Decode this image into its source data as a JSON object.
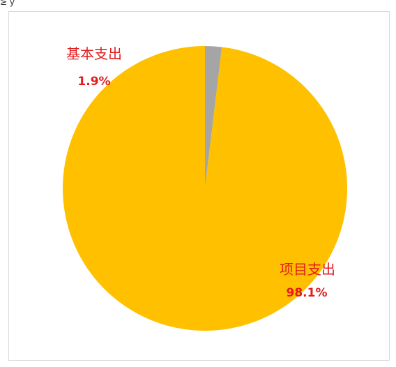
{
  "corner_text": "≥ y",
  "chart_data": {
    "type": "pie",
    "slices": [
      {
        "label": "基本支出",
        "value": 1.9,
        "display": "1.9%",
        "color": "#a5a5a5"
      },
      {
        "label": "项目支出",
        "value": 98.1,
        "display": "98.1%",
        "color": "#ffc000"
      }
    ],
    "start_angle_deg": 0,
    "direction": "clockwise",
    "legend": "none"
  }
}
